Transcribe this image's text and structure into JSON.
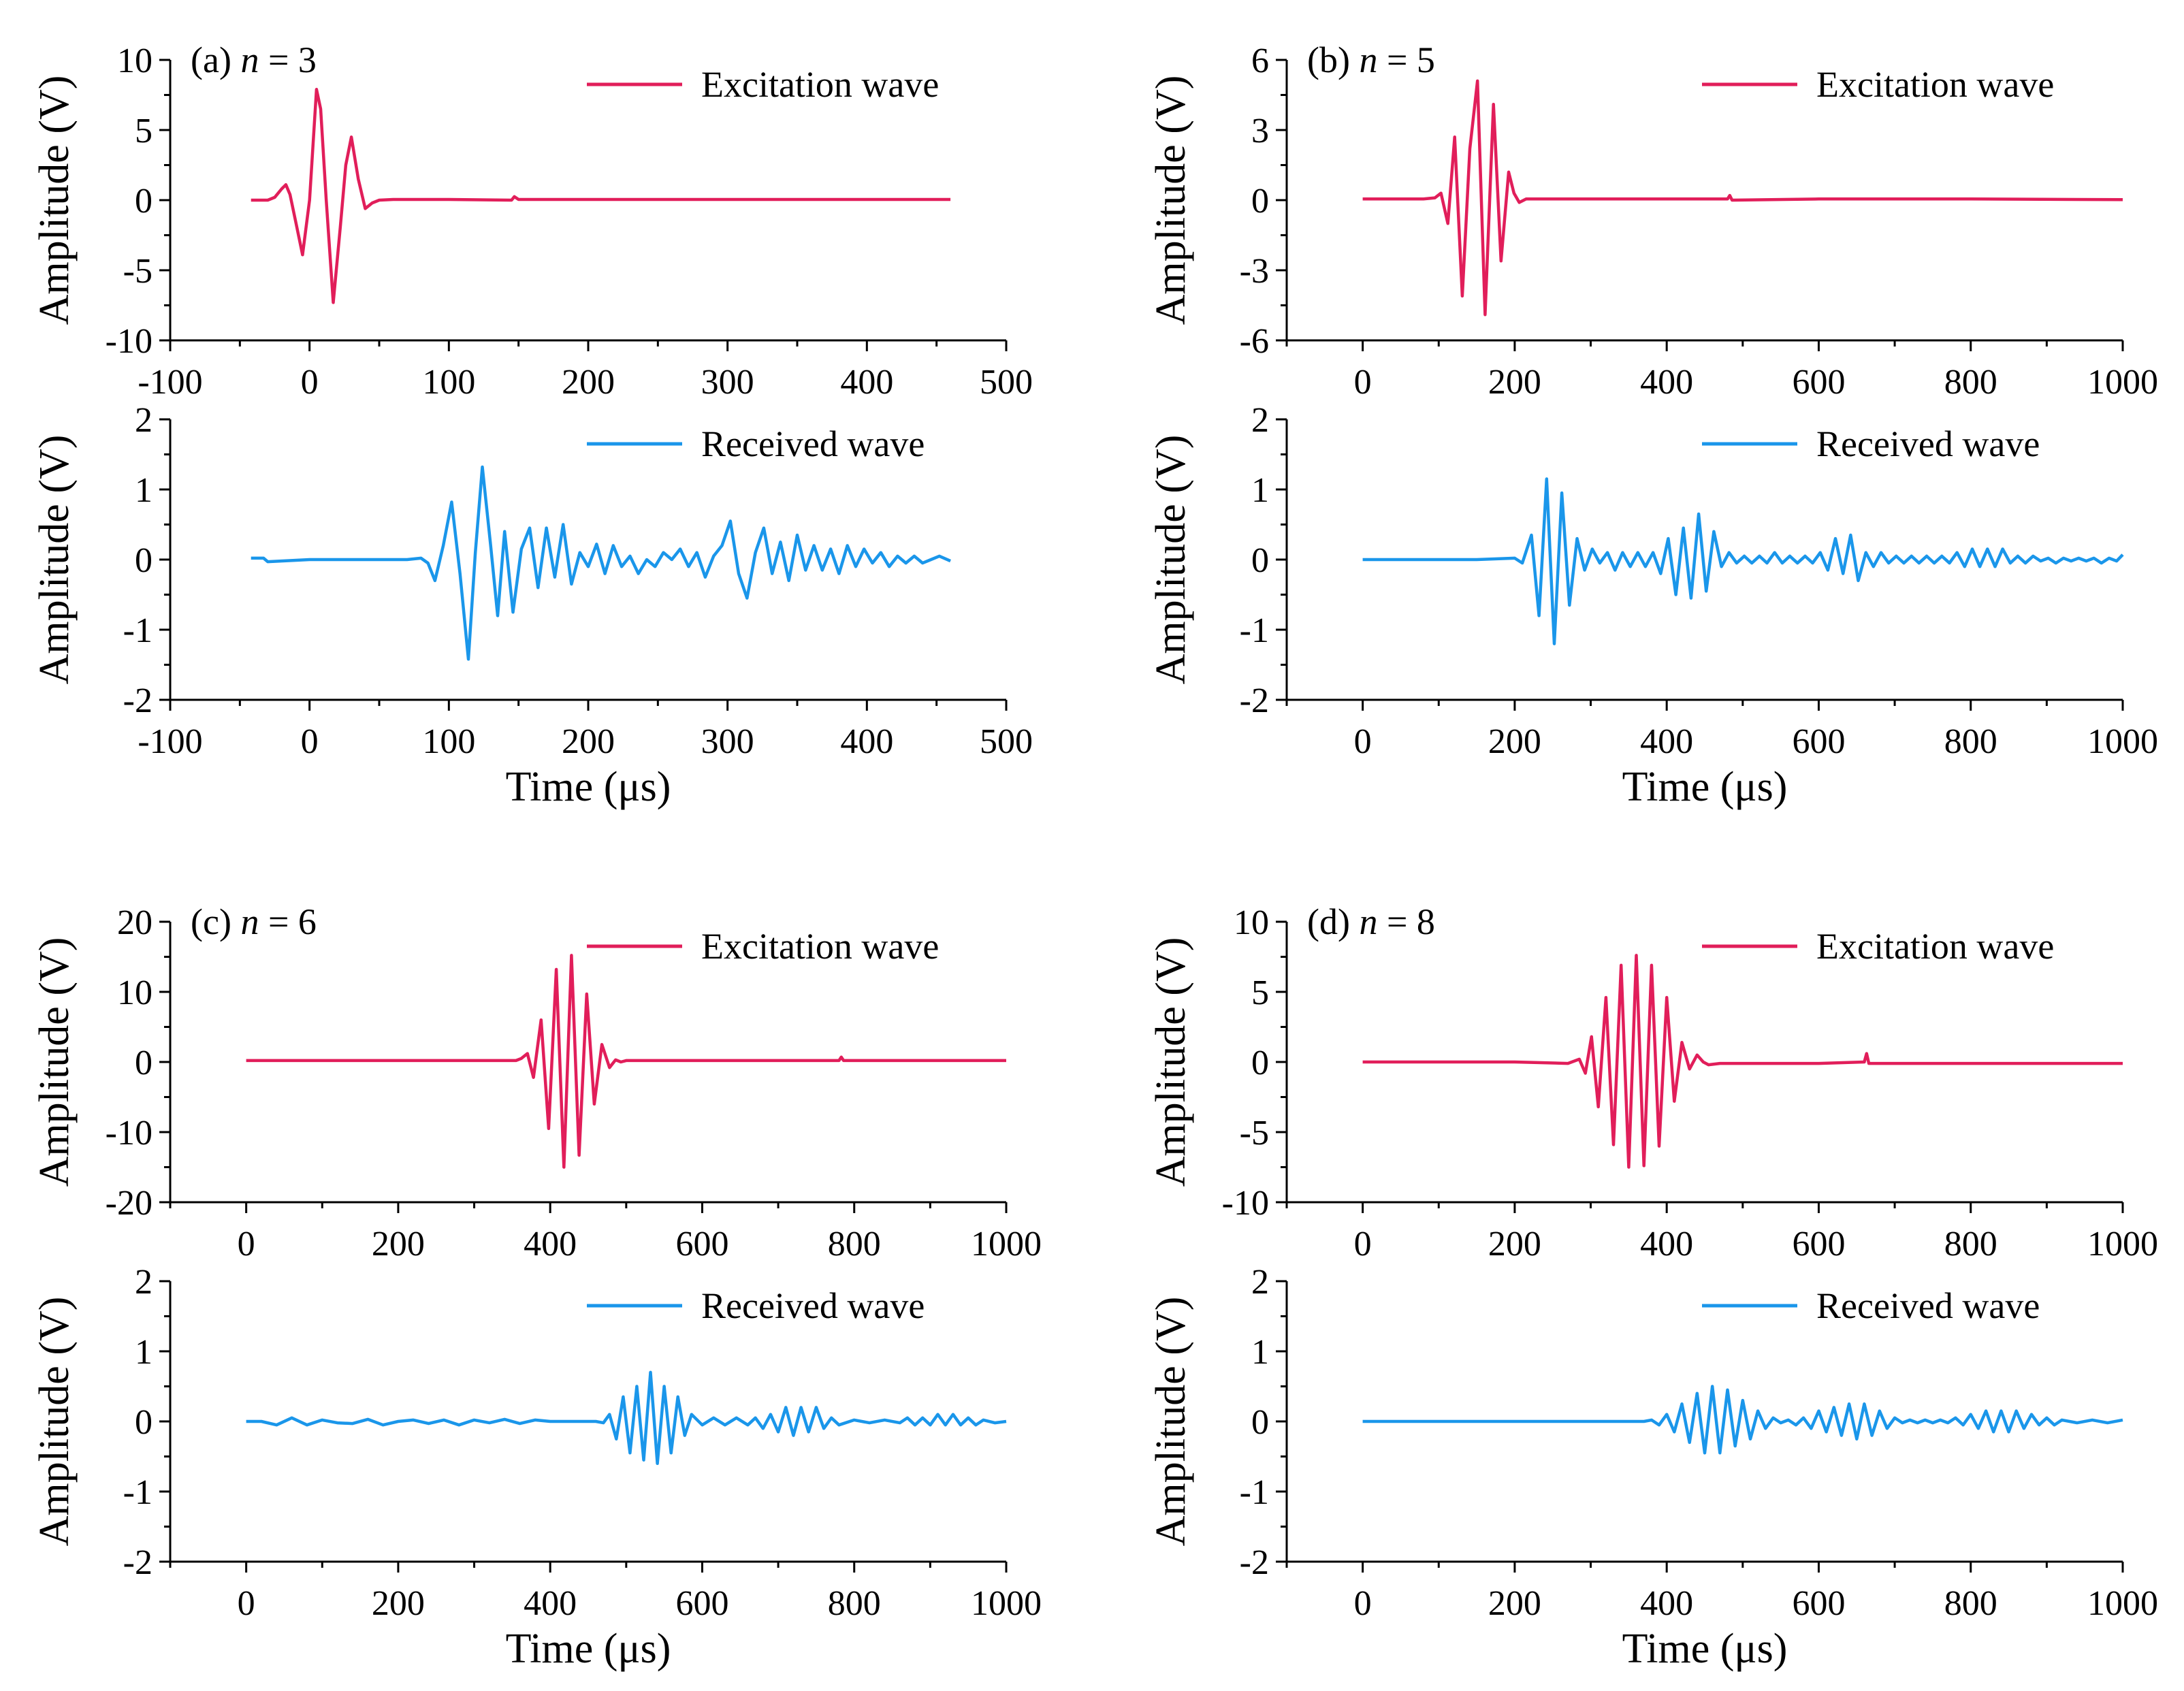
{
  "colors": {
    "excitation": "#E11E5A",
    "received": "#1A96EA",
    "axis": "#000000"
  },
  "chart_data": [
    {
      "panel": "(a)",
      "n_label": "n",
      "n_eq": " = 3",
      "type": "line",
      "xlim": [
        -100,
        500
      ],
      "x_ticks": [
        -100,
        0,
        100,
        200,
        300,
        400,
        500
      ],
      "xlabel": "Time (μs)",
      "series": [
        {
          "name": "Excitation wave",
          "role": "excitation",
          "ylabel": "Amplitude (V)",
          "ylim": [
            -10,
            10
          ],
          "y_ticks": [
            -10,
            -5,
            0,
            5,
            10
          ],
          "x": [
            -42,
            -30,
            -25,
            -20,
            -17,
            -14,
            -10,
            -5,
            0,
            5,
            8,
            12,
            17,
            22,
            26,
            30,
            35,
            40,
            45,
            50,
            60,
            100,
            145,
            147,
            150,
            200,
            300,
            400,
            460
          ],
          "y": [
            0,
            0,
            0.2,
            0.8,
            1.1,
            0.4,
            -1.5,
            -3.9,
            0,
            7.9,
            6.5,
            0,
            -7.3,
            -2,
            2.5,
            4.5,
            1.5,
            -0.6,
            -0.2,
            0,
            0.05,
            0.05,
            0,
            0.25,
            0.05,
            0.05,
            0.05,
            0.05,
            0.05
          ]
        },
        {
          "name": "Received wave",
          "role": "received",
          "ylabel": "Amplitude (V)",
          "ylim": [
            -2,
            2
          ],
          "y_ticks": [
            -2,
            -1,
            0,
            1,
            2
          ],
          "x": [
            -42,
            -33,
            -30,
            0,
            50,
            70,
            80,
            85,
            90,
            96,
            102,
            108,
            114,
            119,
            124,
            130,
            135,
            140,
            146,
            152,
            158,
            164,
            170,
            176,
            182,
            188,
            194,
            200,
            206,
            212,
            218,
            224,
            230,
            236,
            242,
            248,
            254,
            260,
            266,
            272,
            278,
            284,
            290,
            296,
            302,
            308,
            314,
            320,
            326,
            332,
            338,
            344,
            350,
            356,
            362,
            368,
            374,
            380,
            386,
            392,
            398,
            404,
            410,
            416,
            422,
            428,
            434,
            440,
            446,
            452,
            460
          ],
          "y": [
            0.02,
            0.02,
            -0.03,
            0,
            0,
            0,
            0.02,
            -0.05,
            -0.3,
            0.2,
            0.82,
            -0.2,
            -1.42,
            0.1,
            1.32,
            0.2,
            -0.8,
            0.4,
            -0.75,
            0.15,
            0.45,
            -0.4,
            0.45,
            -0.25,
            0.5,
            -0.35,
            0.1,
            -0.1,
            0.22,
            -0.2,
            0.2,
            -0.1,
            0.05,
            -0.2,
            0,
            -0.1,
            0.1,
            0,
            0.15,
            -0.1,
            0.1,
            -0.25,
            0.05,
            0.2,
            0.55,
            -0.2,
            -0.55,
            0.1,
            0.45,
            -0.2,
            0.25,
            -0.3,
            0.35,
            -0.15,
            0.2,
            -0.15,
            0.15,
            -0.2,
            0.2,
            -0.1,
            0.15,
            -0.05,
            0.1,
            -0.1,
            0.05,
            -0.05,
            0.05,
            -0.05,
            0,
            0.05,
            -0.02
          ]
        }
      ]
    },
    {
      "panel": "(b)",
      "n_label": "n",
      "n_eq": " = 5",
      "type": "line",
      "xlim": [
        -100,
        1000
      ],
      "x_ticks": [
        0,
        200,
        400,
        600,
        800,
        1000
      ],
      "xlabel": "Time (μs)",
      "series": [
        {
          "name": "Excitation wave",
          "role": "excitation",
          "ylabel": "Amplitude (V)",
          "ylim": [
            -6,
            6
          ],
          "y_ticks": [
            -6,
            -3,
            0,
            3,
            6
          ],
          "x": [
            0,
            80,
            95,
            103,
            112,
            121,
            131,
            141,
            151,
            161,
            172,
            182,
            192,
            199,
            206,
            215,
            300,
            480,
            483,
            486,
            600,
            800,
            1000
          ],
          "y": [
            0.05,
            0.05,
            0.1,
            0.3,
            -1,
            2.7,
            -4.1,
            2.2,
            5.1,
            -4.9,
            4.1,
            -2.6,
            1.2,
            0.3,
            -0.1,
            0.05,
            0.05,
            0.05,
            0.2,
            0,
            0.05,
            0.05,
            0.02
          ]
        },
        {
          "name": "Received wave",
          "role": "received",
          "ylabel": "Amplitude (V)",
          "ylim": [
            -2,
            2
          ],
          "y_ticks": [
            -2,
            -1,
            0,
            1,
            2
          ],
          "x": [
            0,
            150,
            200,
            210,
            222,
            232,
            242,
            252,
            262,
            272,
            282,
            292,
            302,
            312,
            322,
            332,
            342,
            352,
            362,
            372,
            382,
            392,
            402,
            412,
            422,
            432,
            442,
            452,
            462,
            472,
            482,
            492,
            502,
            512,
            522,
            532,
            542,
            552,
            562,
            572,
            582,
            592,
            602,
            612,
            622,
            632,
            642,
            652,
            662,
            672,
            682,
            692,
            702,
            712,
            722,
            732,
            742,
            752,
            762,
            772,
            782,
            792,
            802,
            812,
            822,
            832,
            842,
            852,
            862,
            872,
            882,
            892,
            902,
            912,
            922,
            932,
            942,
            952,
            962,
            972,
            982,
            992,
            1000
          ],
          "y": [
            0,
            0,
            0.02,
            -0.05,
            0.35,
            -0.8,
            1.15,
            -1.2,
            0.95,
            -0.65,
            0.3,
            -0.15,
            0.15,
            -0.05,
            0.1,
            -0.15,
            0.1,
            -0.1,
            0.1,
            -0.1,
            0.1,
            -0.2,
            0.3,
            -0.5,
            0.45,
            -0.55,
            0.65,
            -0.45,
            0.4,
            -0.1,
            0.1,
            -0.05,
            0.05,
            -0.05,
            0.05,
            -0.05,
            0.1,
            -0.05,
            0.05,
            -0.05,
            0.05,
            -0.05,
            0.1,
            -0.15,
            0.3,
            -0.2,
            0.35,
            -0.3,
            0.1,
            -0.1,
            0.1,
            -0.05,
            0.05,
            -0.05,
            0.05,
            -0.05,
            0.05,
            -0.05,
            0.05,
            -0.05,
            0.1,
            -0.1,
            0.15,
            -0.1,
            0.15,
            -0.1,
            0.15,
            -0.05,
            0.05,
            -0.05,
            0.05,
            -0.02,
            0.02,
            -0.05,
            0.02,
            -0.02,
            0.02,
            -0.02,
            0.02,
            -0.05,
            0.02,
            -0.02,
            0.07
          ]
        }
      ]
    },
    {
      "panel": "(c)",
      "n_label": "n",
      "n_eq": " = 6",
      "type": "line",
      "xlim": [
        -100,
        1000
      ],
      "x_ticks": [
        0,
        200,
        400,
        600,
        800,
        1000
      ],
      "xlabel": "Time (μs)",
      "series": [
        {
          "name": "Excitation wave",
          "role": "excitation",
          "ylabel": "Amplitude (V)",
          "ylim": [
            -20,
            20
          ],
          "y_ticks": [
            -20,
            -10,
            0,
            10,
            20
          ],
          "x": [
            0,
            300,
            355,
            362,
            370,
            378,
            388,
            398,
            408,
            418,
            428,
            438,
            448,
            458,
            468,
            478,
            486,
            493,
            500,
            600,
            780,
            783,
            786,
            900,
            1000
          ],
          "y": [
            0.2,
            0.2,
            0.2,
            0.5,
            1.2,
            -2.2,
            6,
            -9.5,
            13.2,
            -15,
            15.2,
            -13.3,
            9.7,
            -6,
            2.5,
            -0.8,
            0.3,
            0,
            0.2,
            0.2,
            0.2,
            0.7,
            0.2,
            0.2,
            0.2
          ]
        },
        {
          "name": "Received wave",
          "role": "received",
          "ylabel": "Amplitude (V)",
          "ylim": [
            -2,
            2
          ],
          "y_ticks": [
            -2,
            -1,
            0,
            1,
            2
          ],
          "x": [
            0,
            20,
            40,
            60,
            80,
            100,
            120,
            140,
            160,
            180,
            200,
            220,
            240,
            260,
            280,
            300,
            320,
            340,
            360,
            380,
            400,
            420,
            440,
            460,
            470,
            478,
            487,
            496,
            505,
            514,
            523,
            532,
            541,
            550,
            559,
            568,
            577,
            586,
            600,
            615,
            630,
            645,
            660,
            670,
            680,
            690,
            700,
            710,
            720,
            730,
            740,
            750,
            760,
            770,
            780,
            800,
            820,
            840,
            860,
            870,
            880,
            890,
            900,
            910,
            920,
            930,
            940,
            950,
            960,
            970,
            985,
            1000
          ],
          "y": [
            0,
            0,
            -0.05,
            0.05,
            -0.05,
            0.02,
            -0.02,
            -0.03,
            0.03,
            -0.05,
            0,
            0.02,
            -0.03,
            0.02,
            -0.05,
            0.02,
            -0.02,
            0.03,
            -0.03,
            0.02,
            0,
            0,
            0,
            0,
            -0.02,
            0.1,
            -0.25,
            0.35,
            -0.45,
            0.5,
            -0.55,
            0.7,
            -0.6,
            0.5,
            -0.45,
            0.35,
            -0.2,
            0.1,
            -0.05,
            0.05,
            -0.05,
            0.05,
            -0.05,
            0.05,
            -0.1,
            0.1,
            -0.15,
            0.2,
            -0.2,
            0.2,
            -0.15,
            0.2,
            -0.1,
            0.05,
            -0.05,
            0.02,
            -0.02,
            0.02,
            -0.02,
            0.05,
            -0.05,
            0.05,
            -0.05,
            0.1,
            -0.05,
            0.1,
            -0.05,
            0.05,
            -0.05,
            0.02,
            -0.02,
            0
          ]
        }
      ]
    },
    {
      "panel": "(d)",
      "n_label": "n",
      "n_eq": " = 8",
      "type": "line",
      "xlim": [
        -100,
        1000
      ],
      "x_ticks": [
        0,
        200,
        400,
        600,
        800,
        1000
      ],
      "xlabel": "Time (μs)",
      "series": [
        {
          "name": "Excitation wave",
          "role": "excitation",
          "ylabel": "Amplitude (V)",
          "ylim": [
            -10,
            10
          ],
          "y_ticks": [
            -10,
            -5,
            0,
            5,
            10
          ],
          "x": [
            0,
            100,
            200,
            270,
            285,
            293,
            301,
            310,
            320,
            330,
            340,
            350,
            360,
            370,
            380,
            390,
            400,
            410,
            420,
            430,
            440,
            448,
            455,
            470,
            600,
            660,
            663,
            666,
            800,
            1000
          ],
          "y": [
            0,
            0,
            0,
            -0.1,
            0.2,
            -0.8,
            1.8,
            -3.2,
            4.6,
            -5.9,
            6.9,
            -7.5,
            7.6,
            -7.4,
            6.9,
            -6,
            4.6,
            -2.8,
            1.4,
            -0.5,
            0.5,
            0,
            -0.2,
            -0.1,
            -0.1,
            0,
            0.6,
            -0.1,
            -0.1,
            -0.1
          ]
        },
        {
          "name": "Received wave",
          "role": "received",
          "ylabel": "Amplitude (V)",
          "ylim": [
            -2,
            2
          ],
          "y_ticks": [
            -2,
            -1,
            0,
            1,
            2
          ],
          "x": [
            0,
            100,
            200,
            300,
            370,
            380,
            390,
            400,
            410,
            420,
            430,
            440,
            450,
            460,
            470,
            480,
            490,
            500,
            510,
            520,
            530,
            540,
            550,
            560,
            570,
            580,
            590,
            600,
            610,
            620,
            630,
            640,
            650,
            660,
            670,
            680,
            690,
            700,
            710,
            720,
            730,
            740,
            750,
            760,
            770,
            780,
            790,
            800,
            810,
            820,
            830,
            840,
            850,
            860,
            870,
            880,
            890,
            900,
            910,
            920,
            940,
            960,
            980,
            1000
          ],
          "y": [
            0,
            0,
            0,
            0,
            0,
            0.02,
            -0.05,
            0.1,
            -0.15,
            0.25,
            -0.3,
            0.4,
            -0.45,
            0.5,
            -0.45,
            0.45,
            -0.35,
            0.3,
            -0.25,
            0.15,
            -0.1,
            0.05,
            -0.02,
            0.02,
            -0.05,
            0.05,
            -0.1,
            0.15,
            -0.15,
            0.2,
            -0.2,
            0.25,
            -0.25,
            0.25,
            -0.2,
            0.15,
            -0.1,
            0.05,
            -0.02,
            0.02,
            -0.02,
            0.02,
            -0.02,
            0.02,
            -0.02,
            0.05,
            -0.05,
            0.1,
            -0.1,
            0.15,
            -0.15,
            0.15,
            -0.15,
            0.15,
            -0.1,
            0.1,
            -0.05,
            0.05,
            -0.05,
            0.02,
            -0.02,
            0.02,
            -0.02,
            0.02
          ]
        }
      ]
    }
  ]
}
